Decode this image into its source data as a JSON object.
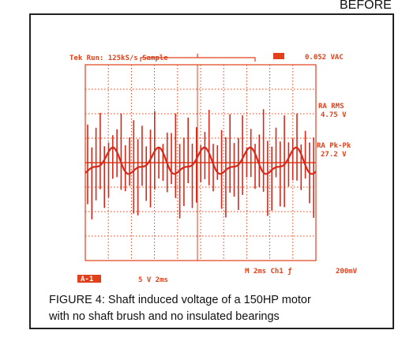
{
  "header": {
    "title": "BEFORE"
  },
  "scope": {
    "run_status": "Tek Run: 125kS/s Sample",
    "reading": "0.052 VAC",
    "rms_label": "RA RMS",
    "rms_value": "4.75 V",
    "pkpk_label": "RA Pk-Pk",
    "pkpk_value": "27.2 V",
    "marker": "A-1",
    "channel_scale": "5 V  2ms",
    "timebase": "M  2ms Ch1 ƒ",
    "trigger": "200mV"
  },
  "caption": {
    "lines": [
      "FIGURE 4: Shaft induced voltage of a 150HP motor",
      "with no shaft brush and no insulated bearings"
    ]
  }
}
